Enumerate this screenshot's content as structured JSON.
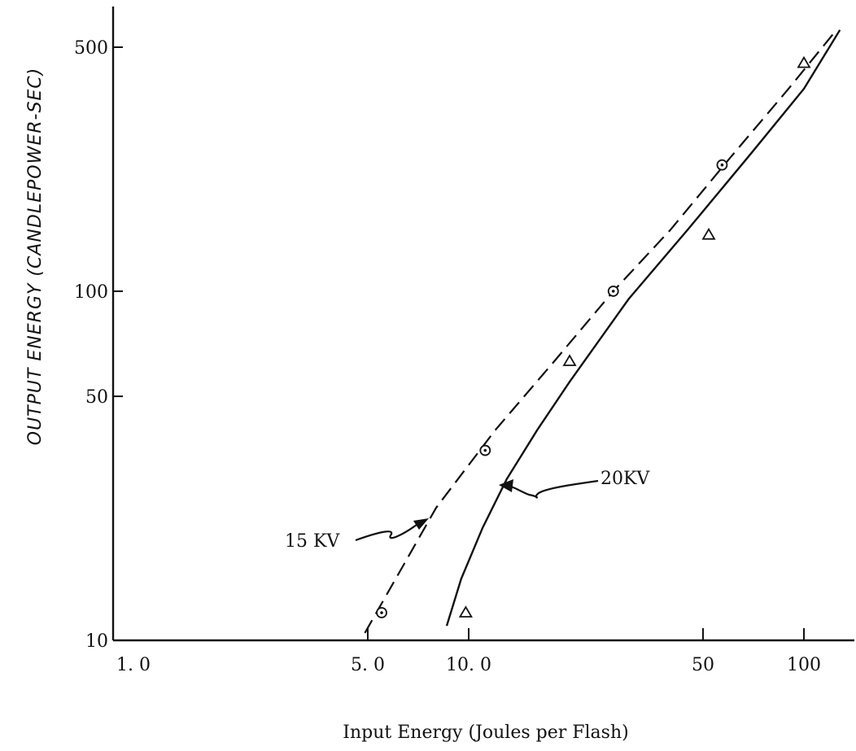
{
  "chart_data": {
    "type": "scatter",
    "title": "",
    "xlabel": "Input Energy (Joules per Flash)",
    "ylabel": "OUTPUT ENERGY (CANDLEPOWER-SEC)",
    "x_scale": "log",
    "y_scale": "log",
    "xlim": [
      1.0,
      130
    ],
    "ylim": [
      10,
      600
    ],
    "x_ticks": [
      {
        "value": 1.0,
        "label": "1. 0"
      },
      {
        "value": 5.0,
        "label": "5. 0"
      },
      {
        "value": 10.0,
        "label": "10. 0"
      },
      {
        "value": 50,
        "label": "50"
      },
      {
        "value": 100,
        "label": "100"
      }
    ],
    "y_ticks": [
      {
        "value": 10,
        "label": "10"
      },
      {
        "value": 50,
        "label": "50"
      },
      {
        "value": 100,
        "label": "100"
      },
      {
        "value": 500,
        "label": "500"
      }
    ],
    "grid": false,
    "series": [
      {
        "name": "15 KV",
        "marker": "circle-dot",
        "line": "dashed",
        "points": [
          [
            5.5,
            12
          ],
          [
            11.2,
            35
          ],
          [
            27,
            100
          ],
          [
            57,
            230
          ]
        ],
        "curve": [
          [
            4.9,
            10.5
          ],
          [
            8,
            24
          ],
          [
            12,
            40
          ],
          [
            18,
            63
          ],
          [
            27,
            100
          ],
          [
            40,
            150
          ],
          [
            60,
            240
          ],
          [
            90,
            380
          ],
          [
            125,
            560
          ]
        ]
      },
      {
        "name": "20KV",
        "marker": "triangle",
        "line": "solid",
        "points": [
          [
            9.8,
            12
          ],
          [
            20,
            63
          ],
          [
            52,
            145
          ],
          [
            100,
            450
          ]
        ],
        "curve": [
          [
            8.6,
            11
          ],
          [
            9.5,
            15
          ],
          [
            11,
            21
          ],
          [
            13,
            29
          ],
          [
            16,
            40
          ],
          [
            20,
            55
          ],
          [
            30,
            95
          ],
          [
            45,
            150
          ],
          [
            70,
            250
          ],
          [
            100,
            380
          ],
          [
            128,
            560
          ]
        ]
      }
    ],
    "annotations": [
      {
        "text": "15 KV",
        "points_to": "dashed curve"
      },
      {
        "text": "20KV",
        "points_to": "solid curve"
      }
    ]
  }
}
